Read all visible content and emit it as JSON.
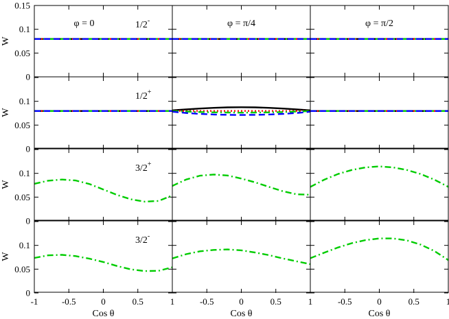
{
  "chart_data": {
    "type": "line",
    "layout": {
      "rows": 4,
      "cols": 3
    },
    "xlabel": "Cos θ",
    "ylabel": "W",
    "xlim": [
      -1,
      1
    ],
    "ylim": [
      0,
      0.15
    ],
    "xticks": [
      -1,
      -0.5,
      0,
      0.5,
      1
    ],
    "xtick_labels": [
      [
        "-1",
        "-0.5",
        "0",
        "0.5",
        "1"
      ],
      [
        "",
        "-0.5",
        "0",
        "0.5",
        "1"
      ],
      [
        "",
        "-0.5",
        "0",
        "0.5",
        "1"
      ]
    ],
    "yticks": [
      0,
      0.05,
      0.1,
      0.15
    ],
    "ytick_labels": [
      [
        "0",
        "0.05",
        "0.1",
        "0.15"
      ],
      [
        "0",
        "0.05",
        "0.1",
        ""
      ],
      [
        "0",
        "0.05",
        "0.1",
        ""
      ],
      [
        "0",
        "0.05",
        "0.1",
        ""
      ]
    ],
    "column_titles": [
      "φ = 0",
      "φ = π/4",
      "φ = π/2"
    ],
    "row_labels": [
      {
        "base": "1/2",
        "sup": "-"
      },
      {
        "base": "1/2",
        "sup": "+"
      },
      {
        "base": "3/2",
        "sup": "+"
      },
      {
        "base": "3/2",
        "sup": "-"
      }
    ],
    "series_styles": [
      {
        "color": "#000000",
        "dash": ""
      },
      {
        "color": "#ff0000",
        "dash": "2,3"
      },
      {
        "color": "#00cc00",
        "dash": "9,4,2,4"
      },
      {
        "color": "#0000ff",
        "dash": "9,5"
      }
    ],
    "x": [
      -1,
      -0.8,
      -0.6,
      -0.4,
      -0.2,
      0,
      0.2,
      0.4,
      0.6,
      0.8,
      1
    ],
    "panels": [
      [
        {
          "series": [
            {
              "values": [
                0.0796,
                0.0796,
                0.0796,
                0.0796,
                0.0796,
                0.0796,
                0.0796,
                0.0796,
                0.0796,
                0.0796,
                0.0796
              ]
            },
            {
              "values": [
                0.0796,
                0.0796,
                0.0796,
                0.0796,
                0.0796,
                0.0796,
                0.0796,
                0.0796,
                0.0796,
                0.0796,
                0.0796
              ]
            },
            {
              "values": [
                0.0796,
                0.0796,
                0.0796,
                0.0796,
                0.0796,
                0.0796,
                0.0796,
                0.0796,
                0.0796,
                0.0796,
                0.0796
              ]
            },
            {
              "values": [
                0.0796,
                0.0796,
                0.0796,
                0.0796,
                0.0796,
                0.0796,
                0.0796,
                0.0796,
                0.0796,
                0.0796,
                0.0796
              ]
            }
          ]
        },
        {
          "series": [
            {
              "values": [
                0.0796,
                0.0796,
                0.0796,
                0.0796,
                0.0796,
                0.0796,
                0.0796,
                0.0796,
                0.0796,
                0.0796,
                0.0796
              ]
            },
            {
              "values": [
                0.0796,
                0.0796,
                0.0796,
                0.0796,
                0.0796,
                0.0796,
                0.0796,
                0.0796,
                0.0796,
                0.0796,
                0.0796
              ]
            },
            {
              "values": [
                0.0796,
                0.0796,
                0.0796,
                0.0796,
                0.0796,
                0.0796,
                0.0796,
                0.0796,
                0.0796,
                0.0796,
                0.0796
              ]
            },
            {
              "values": [
                0.0796,
                0.0796,
                0.0796,
                0.0796,
                0.0796,
                0.0796,
                0.0796,
                0.0796,
                0.0796,
                0.0796,
                0.0796
              ]
            }
          ]
        },
        {
          "series": [
            {
              "values": [
                0.0796,
                0.0796,
                0.0796,
                0.0796,
                0.0796,
                0.0796,
                0.0796,
                0.0796,
                0.0796,
                0.0796,
                0.0796
              ]
            },
            {
              "values": [
                0.0796,
                0.0796,
                0.0796,
                0.0796,
                0.0796,
                0.0796,
                0.0796,
                0.0796,
                0.0796,
                0.0796,
                0.0796
              ]
            },
            {
              "values": [
                0.0796,
                0.0796,
                0.0796,
                0.0796,
                0.0796,
                0.0796,
                0.0796,
                0.0796,
                0.0796,
                0.0796,
                0.0796
              ]
            },
            {
              "values": [
                0.0796,
                0.0796,
                0.0796,
                0.0796,
                0.0796,
                0.0796,
                0.0796,
                0.0796,
                0.0796,
                0.0796,
                0.0796
              ]
            }
          ]
        }
      ],
      [
        {
          "series": [
            {
              "values": [
                0.0796,
                0.0796,
                0.0796,
                0.0796,
                0.0796,
                0.0796,
                0.0796,
                0.0796,
                0.0796,
                0.0796,
                0.0796
              ]
            },
            {
              "values": [
                0.0796,
                0.0796,
                0.0796,
                0.0796,
                0.0796,
                0.0796,
                0.0796,
                0.0796,
                0.0796,
                0.0796,
                0.0796
              ]
            },
            {
              "values": [
                0.0796,
                0.0796,
                0.0796,
                0.0796,
                0.0796,
                0.0796,
                0.0796,
                0.0796,
                0.0796,
                0.0796,
                0.0796
              ]
            },
            {
              "values": [
                0.0796,
                0.0796,
                0.0796,
                0.0796,
                0.0796,
                0.0796,
                0.0796,
                0.0796,
                0.0796,
                0.0796,
                0.0796
              ]
            }
          ]
        },
        {
          "series": [
            {
              "values": [
                0.081,
                0.083,
                0.0848,
                0.0862,
                0.0872,
                0.0876,
                0.0872,
                0.0862,
                0.0848,
                0.083,
                0.081
              ]
            },
            {
              "values": [
                0.0798,
                0.0798,
                0.0798,
                0.0798,
                0.0798,
                0.0798,
                0.0798,
                0.0798,
                0.0798,
                0.0798,
                0.0798
              ]
            },
            {
              "values": [
                0.0796,
                0.0785,
                0.0775,
                0.0768,
                0.0764,
                0.0762,
                0.0764,
                0.0768,
                0.0775,
                0.0785,
                0.0796
              ]
            },
            {
              "values": [
                0.0782,
                0.0755,
                0.0735,
                0.0722,
                0.0715,
                0.0713,
                0.0715,
                0.0722,
                0.0735,
                0.0755,
                0.0782
              ]
            }
          ]
        },
        {
          "series": [
            {
              "values": [
                0.0796,
                0.0796,
                0.0796,
                0.0796,
                0.0796,
                0.0796,
                0.0796,
                0.0796,
                0.0796,
                0.0796,
                0.0796
              ]
            },
            {
              "values": [
                0.0796,
                0.0796,
                0.0796,
                0.0796,
                0.0796,
                0.0796,
                0.0796,
                0.0796,
                0.0796,
                0.0796,
                0.0796
              ]
            },
            {
              "values": [
                0.0796,
                0.0796,
                0.0796,
                0.0796,
                0.0796,
                0.0796,
                0.0796,
                0.0796,
                0.0796,
                0.0796,
                0.0796
              ]
            },
            {
              "values": [
                0.0796,
                0.0796,
                0.0796,
                0.0796,
                0.0796,
                0.0796,
                0.0796,
                0.0796,
                0.0796,
                0.0796,
                0.0796
              ]
            }
          ]
        }
      ],
      [
        {
          "series": [
            {
              "values": [
                0.078,
                0.0845,
                0.087,
                0.085,
                0.0775,
                0.066,
                0.0545,
                0.0455,
                0.0405,
                0.042,
                0.0535
              ]
            }
          ]
        },
        {
          "series": [
            {
              "values": [
                0.0735,
                0.087,
                0.095,
                0.0975,
                0.0955,
                0.089,
                0.081,
                0.0715,
                0.0625,
                0.056,
                0.055
              ]
            }
          ]
        },
        {
          "series": [
            {
              "values": [
                0.0715,
                0.0865,
                0.0985,
                0.107,
                0.1125,
                0.1145,
                0.1125,
                0.107,
                0.0985,
                0.0865,
                0.0715
              ]
            }
          ]
        }
      ],
      [
        {
          "series": [
            {
              "values": [
                0.0735,
                0.079,
                0.08,
                0.0775,
                0.072,
                0.065,
                0.0565,
                0.0495,
                0.046,
                0.0465,
                0.054
              ]
            }
          ]
        },
        {
          "series": [
            {
              "values": [
                0.0725,
                0.0815,
                0.0875,
                0.0905,
                0.0915,
                0.0895,
                0.085,
                0.0795,
                0.0725,
                0.0665,
                0.0605
              ]
            }
          ]
        },
        {
          "series": [
            {
              "values": [
                0.073,
                0.0845,
                0.0955,
                0.1045,
                0.111,
                0.1145,
                0.1145,
                0.1105,
                0.1015,
                0.088,
                0.069
              ]
            }
          ]
        }
      ]
    ]
  }
}
